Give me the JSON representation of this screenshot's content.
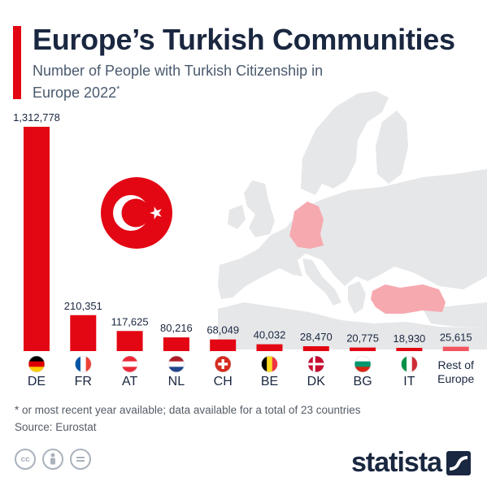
{
  "header": {
    "title": "Europe’s Turkish Communities",
    "subtitle": "Number of People with Turkish Citizenship in Europe 2022",
    "subtitle_mark": "*"
  },
  "chart_data": {
    "type": "bar",
    "title": "Europe’s Turkish Communities",
    "subtitle": "Number of People with Turkish Citizenship in Europe 2022*",
    "categories": [
      "DE",
      "FR",
      "AT",
      "NL",
      "CH",
      "BE",
      "DK",
      "BG",
      "IT",
      "Rest of Europe"
    ],
    "values": [
      1312778,
      210351,
      117625,
      80216,
      68049,
      40032,
      28470,
      20775,
      18930,
      25615
    ],
    "value_labels": [
      "1,312,778",
      "210,351",
      "117,625",
      "80,216",
      "68,049",
      "40,032",
      "28,470",
      "20,775",
      "18,930",
      "25,615"
    ],
    "category_lines": [
      [
        "DE"
      ],
      [
        "FR"
      ],
      [
        "AT"
      ],
      [
        "NL"
      ],
      [
        "CH"
      ],
      [
        "BE"
      ],
      [
        "DK"
      ],
      [
        "BG"
      ],
      [
        "IT"
      ],
      [
        "Rest of",
        "Europe"
      ]
    ],
    "flag_icons": [
      "germany-flag-icon",
      "france-flag-icon",
      "austria-flag-icon",
      "netherlands-flag-icon",
      "switzerland-flag-icon",
      "belgium-flag-icon",
      "denmark-flag-icon",
      "bulgaria-flag-icon",
      "italy-flag-icon",
      ""
    ],
    "ylim": [
      0,
      1312778
    ],
    "grid": false,
    "xlabel": "",
    "ylabel": "",
    "colors": {
      "bar": "#e30613",
      "rest_bar": "#f2545f"
    }
  },
  "footer": {
    "note": "* or most recent year available; data available for a total of 23 countries",
    "source": "Source: Eurostat",
    "logo": "statista"
  },
  "colors": {
    "accent": "#e30613",
    "title": "#1a2740",
    "map_land": "#e6e7e9",
    "map_highlight": "#f7a9b0"
  }
}
